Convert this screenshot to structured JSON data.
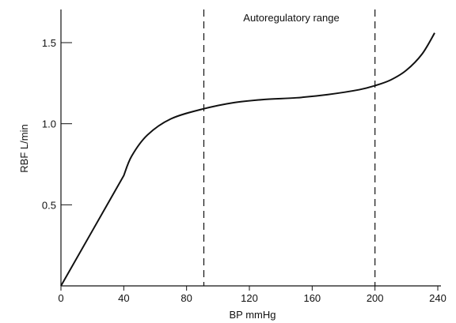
{
  "chart_data": {
    "type": "line",
    "title": "",
    "xlabel": "BP mmHg",
    "ylabel": "RBF L/min",
    "xlim": [
      0,
      240
    ],
    "ylim": [
      0,
      1.5
    ],
    "x_ticks": [
      0,
      40,
      80,
      120,
      160,
      200,
      240
    ],
    "x_tick_labels": [
      "0",
      "40",
      "80",
      "120",
      "160",
      "200",
      "240"
    ],
    "y_ticks": [
      0.5,
      1.0,
      1.5
    ],
    "y_tick_labels": [
      "0.5",
      "1.0",
      "1.5"
    ],
    "grid": false,
    "series": [
      {
        "x": [
          0,
          20,
          40,
          45,
          55,
          70,
          90,
          110,
          130,
          150,
          170,
          190,
          200,
          210,
          220,
          230,
          238
        ],
        "y": [
          0,
          0.34,
          0.68,
          0.8,
          0.93,
          1.03,
          1.09,
          1.13,
          1.15,
          1.16,
          1.18,
          1.21,
          1.235,
          1.27,
          1.33,
          1.43,
          1.56
        ]
      }
    ],
    "reference_lines": [
      {
        "x": 91
      },
      {
        "x": 200
      }
    ],
    "annotations": [
      {
        "text": "Autoregulatory range"
      }
    ]
  }
}
